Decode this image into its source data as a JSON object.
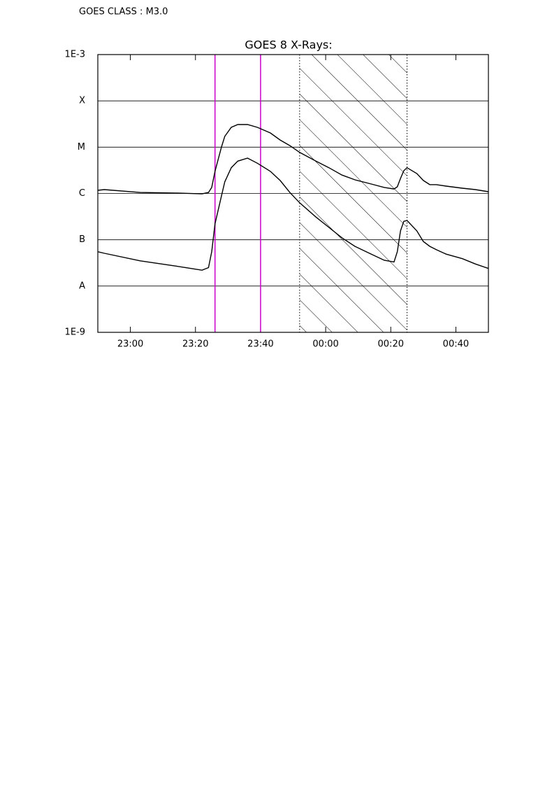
{
  "chart_data": {
    "type": "line",
    "annotation": "GOES CLASS : M3.0",
    "title": "GOES 8 X-Rays:",
    "log_scale_y": true,
    "grid": true,
    "x": [
      "22:50",
      "22:52",
      "23:03",
      "23:14",
      "23:22",
      "23:24",
      "23:25",
      "23:26",
      "23:28",
      "23:29",
      "23:31",
      "23:33",
      "23:36",
      "23:39",
      "23:43",
      "23:46",
      "23:49",
      "23:52",
      "23:57",
      "00:01",
      "00:05",
      "00:09",
      "00:14",
      "00:18",
      "00:21",
      "00:22",
      "00:23",
      "00:24",
      "00:25",
      "00:28",
      "00:30",
      "00:32",
      "00:34",
      "00:37",
      "00:42",
      "00:46",
      "00:50"
    ],
    "series": [
      {
        "color": "#000000",
        "values": [
          1.17e-06,
          1.21e-06,
          1.05e-06,
          1.02e-06,
          9.8e-07,
          1.05e-06,
          1.35e-06,
          3e-06,
          1.01e-05,
          1.71e-05,
          2.68e-05,
          3.08e-05,
          3.08e-05,
          2.68e-05,
          2.03e-05,
          1.43e-05,
          1.08e-05,
          7.7e-06,
          5e-06,
          3.6e-06,
          2.5e-06,
          1.97e-06,
          1.6e-06,
          1.35e-06,
          1.25e-06,
          1.39e-06,
          2.11e-06,
          3.1e-06,
          3.6e-06,
          2.7e-06,
          1.91e-06,
          1.55e-06,
          1.55e-06,
          1.44e-06,
          1.3e-06,
          1.21e-06,
          1.09e-06
        ]
      },
      {
        "color": "#000000",
        "values": [
          5.5e-08,
          5.1e-08,
          3.5e-08,
          2.7e-08,
          2.2e-08,
          2.5e-08,
          5.5e-08,
          2.2e-07,
          8.9e-07,
          1.78e-06,
          3.6e-06,
          5e-06,
          5.8e-06,
          4.5e-06,
          3e-06,
          1.91e-06,
          1.05e-06,
          6.3e-07,
          3.1e-07,
          1.85e-07,
          1.1e-07,
          7.2e-08,
          4.9e-08,
          3.6e-08,
          3.3e-08,
          5.5e-08,
          1.56e-07,
          2.5e-07,
          2.6e-07,
          1.56e-07,
          9.2e-08,
          7.2e-08,
          6.1e-08,
          4.9e-08,
          3.9e-08,
          3e-08,
          2.4e-08
        ]
      }
    ],
    "xlim": [
      "22:50",
      "00:50"
    ],
    "xticks": [
      "23:00",
      "23:20",
      "23:40",
      "00:00",
      "00:20",
      "00:40"
    ],
    "ylim": [
      1e-09,
      0.001
    ],
    "yticks": [
      {
        "value": 1e-09,
        "label": "1E-9"
      },
      {
        "value": 1e-08,
        "label": "A"
      },
      {
        "value": 1e-07,
        "label": "B"
      },
      {
        "value": 1e-06,
        "label": "C"
      },
      {
        "value": 1e-05,
        "label": "M"
      },
      {
        "value": 0.0001,
        "label": "X"
      },
      {
        "value": 0.001,
        "label": "1E-3"
      }
    ],
    "markers": [
      {
        "x": "23:26",
        "color": "#cc00cc"
      },
      {
        "x": "23:40",
        "color": "#cc00cc"
      }
    ],
    "shaded_region": {
      "x": [
        "23:52",
        "00:25"
      ],
      "color": "#000000"
    }
  }
}
